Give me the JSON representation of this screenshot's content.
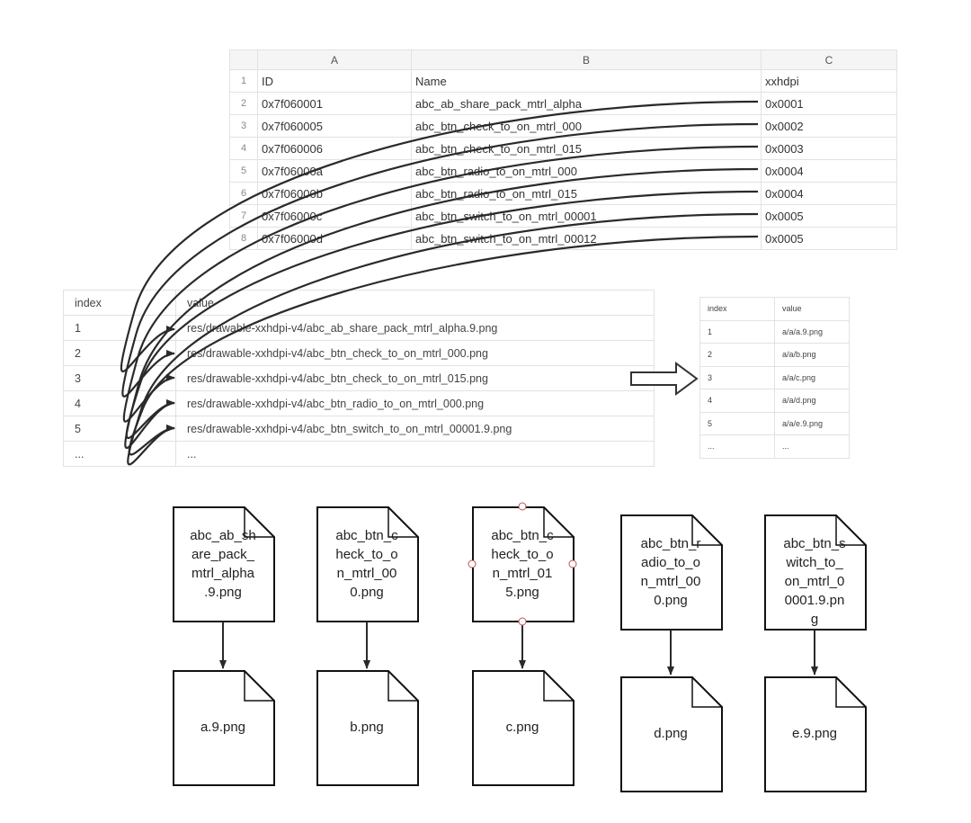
{
  "sheet": {
    "columns": [
      "A",
      "B",
      "C"
    ],
    "rows": [
      {
        "n": "1",
        "id": "ID",
        "name": "Name",
        "c": "xxhdpi"
      },
      {
        "n": "2",
        "id": "0x7f060001",
        "name": "abc_ab_share_pack_mtrl_alpha",
        "c": "0x0001"
      },
      {
        "n": "3",
        "id": "0x7f060005",
        "name": "abc_btn_check_to_on_mtrl_000",
        "c": "0x0002"
      },
      {
        "n": "4",
        "id": "0x7f060006",
        "name": "abc_btn_check_to_on_mtrl_015",
        "c": "0x0003"
      },
      {
        "n": "5",
        "id": "0x7f06000a",
        "name": "abc_btn_radio_to_on_mtrl_000",
        "c": "0x0004"
      },
      {
        "n": "6",
        "id": "0x7f06000b",
        "name": "abc_btn_radio_to_on_mtrl_015",
        "c": "0x0004"
      },
      {
        "n": "7",
        "id": "0x7f06000c",
        "name": "abc_btn_switch_to_on_mtrl_00001",
        "c": "0x0005"
      },
      {
        "n": "8",
        "id": "0x7f06000d",
        "name": "abc_btn_switch_to_on_mtrl_00012",
        "c": "0x0005"
      }
    ]
  },
  "string_pool": {
    "headers": [
      "index",
      "value"
    ],
    "rows": [
      [
        "1",
        "res/drawable-xxhdpi-v4/abc_ab_share_pack_mtrl_alpha.9.png"
      ],
      [
        "2",
        "res/drawable-xxhdpi-v4/abc_btn_check_to_on_mtrl_000.png"
      ],
      [
        "3",
        "res/drawable-xxhdpi-v4/abc_btn_check_to_on_mtrl_015.png"
      ],
      [
        "4",
        "res/drawable-xxhdpi-v4/abc_btn_radio_to_on_mtrl_000.png"
      ],
      [
        "5",
        "res/drawable-xxhdpi-v4/abc_btn_switch_to_on_mtrl_00001.9.png"
      ],
      [
        "...",
        "..."
      ]
    ]
  },
  "obfuscated_pool": {
    "headers": [
      "index",
      "value"
    ],
    "rows": [
      [
        "1",
        "a/a/a.9.png"
      ],
      [
        "2",
        "a/a/b.png"
      ],
      [
        "3",
        "a/a/c.png"
      ],
      [
        "4",
        "a/a/d.png"
      ],
      [
        "5",
        "a/a/e.9.png"
      ],
      [
        "...",
        "..."
      ]
    ]
  },
  "files": [
    {
      "original": [
        "abc_ab_sh",
        "are_pack_",
        "mtrl_alpha",
        ".9.png"
      ],
      "renamed": [
        "a.9.png"
      ]
    },
    {
      "original": [
        "abc_btn_c",
        "heck_to_o",
        "n_mtrl_00",
        "0.png"
      ],
      "renamed": [
        "b.png"
      ]
    },
    {
      "original": [
        "abc_btn_c",
        "heck_to_o",
        "n_mtrl_01",
        "5.png"
      ],
      "renamed": [
        "c.png"
      ]
    },
    {
      "original": [
        "abc_btn_r",
        "adio_to_o",
        "n_mtrl_00",
        "0.png"
      ],
      "renamed": [
        "d.png"
      ]
    },
    {
      "original": [
        "abc_btn_s",
        "witch_to_",
        "on_mtrl_0",
        "0001.9.pn",
        "g"
      ],
      "renamed": [
        "e.9.png"
      ]
    }
  ],
  "mappings": [
    {
      "from": "0x0001",
      "to_index": "1"
    },
    {
      "from": "0x0002",
      "to_index": "2"
    },
    {
      "from": "0x0003",
      "to_index": "3"
    },
    {
      "from": "0x0004",
      "to_index": "4"
    },
    {
      "from": "0x0004",
      "to_index": "4"
    },
    {
      "from": "0x0005",
      "to_index": "5"
    },
    {
      "from": "0x0005",
      "to_index": "5"
    }
  ],
  "colors": {
    "line": "#2a2a2a",
    "grid": "#e2e2e2"
  }
}
